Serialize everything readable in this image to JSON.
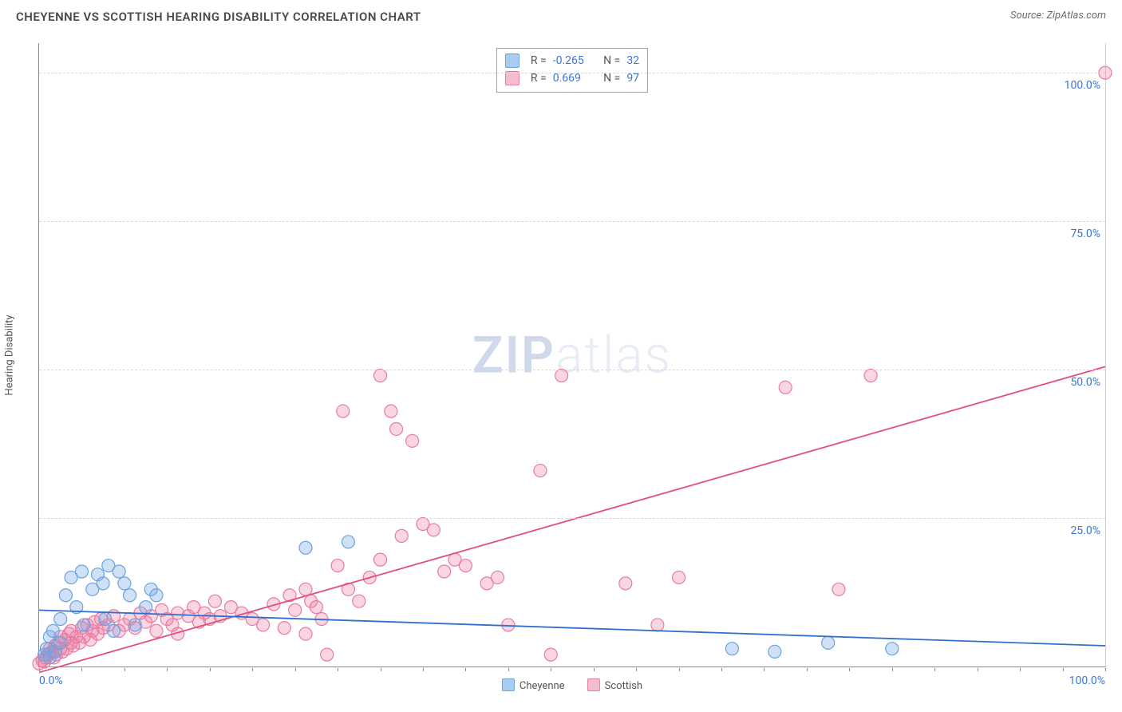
{
  "header": {
    "title": "CHEYENNE VS SCOTTISH HEARING DISABILITY CORRELATION CHART",
    "source_prefix": "Source: ",
    "source_name": "ZipAtlas.com"
  },
  "watermark": {
    "bold": "ZIP",
    "rest": "atlas"
  },
  "chart": {
    "type": "scatter",
    "y_axis_label": "Hearing Disability",
    "xlim": [
      0,
      100
    ],
    "ylim": [
      0,
      105
    ],
    "x_origin_label": "0.0%",
    "x_max_label": "100.0%",
    "y_ticks": [
      {
        "value": 25,
        "label": "25.0%"
      },
      {
        "value": 50,
        "label": "50.0%"
      },
      {
        "value": 75,
        "label": "75.0%"
      },
      {
        "value": 100,
        "label": "100.0%"
      }
    ],
    "x_minor_tick_step": 4,
    "background_color": "#ffffff",
    "grid_color": "#d9d9d9",
    "axis_color": "#8a8a8a",
    "tick_label_color": "#3a76d6",
    "series": {
      "cheyenne": {
        "label": "Cheyenne",
        "color_fill": "rgba(120,170,230,0.35)",
        "color_stroke": "#6aa3e0",
        "swatch_fill": "#a9cdf1",
        "swatch_stroke": "#6aa3e0",
        "marker_radius": 8,
        "r_value": "-0.265",
        "n_value": "32",
        "trend": {
          "x1": 0,
          "y1": 9.5,
          "x2": 100,
          "y2": 3.5,
          "color": "#2f6fd0"
        },
        "points": [
          [
            0.5,
            2
          ],
          [
            0.7,
            3
          ],
          [
            1,
            5
          ],
          [
            1,
            1.5
          ],
          [
            1.3,
            6
          ],
          [
            1.5,
            2.5
          ],
          [
            2,
            4
          ],
          [
            2,
            8
          ],
          [
            2.5,
            12
          ],
          [
            3,
            15
          ],
          [
            3.5,
            10
          ],
          [
            4,
            16
          ],
          [
            4.2,
            7
          ],
          [
            5,
            13
          ],
          [
            5.5,
            15.5
          ],
          [
            6,
            14
          ],
          [
            6.2,
            8
          ],
          [
            6.5,
            17
          ],
          [
            7,
            6
          ],
          [
            7.5,
            16
          ],
          [
            8,
            14
          ],
          [
            8.5,
            12
          ],
          [
            9,
            7
          ],
          [
            10,
            10
          ],
          [
            10.5,
            13
          ],
          [
            11,
            12
          ],
          [
            25,
            20
          ],
          [
            29,
            21
          ],
          [
            65,
            3
          ],
          [
            69,
            2.5
          ],
          [
            74,
            4
          ],
          [
            80,
            3
          ]
        ]
      },
      "scottish": {
        "label": "Scottish",
        "color_fill": "rgba(235,120,160,0.30)",
        "color_stroke": "#e87ba2",
        "swatch_fill": "#f4bcd0",
        "swatch_stroke": "#e87ba2",
        "marker_radius": 8,
        "r_value": "0.669",
        "n_value": "97",
        "trend": {
          "x1": 0,
          "y1": -1,
          "x2": 100,
          "y2": 50.5,
          "color": "#e14e7e"
        },
        "points": [
          [
            0,
            0.5
          ],
          [
            0.3,
            1
          ],
          [
            0.5,
            0.8
          ],
          [
            0.6,
            1.5
          ],
          [
            0.8,
            2
          ],
          [
            1,
            2.2
          ],
          [
            1,
            3
          ],
          [
            1.2,
            2.5
          ],
          [
            1.4,
            1.5
          ],
          [
            1.5,
            3.5
          ],
          [
            1.6,
            2
          ],
          [
            1.8,
            4
          ],
          [
            2,
            3
          ],
          [
            2,
            5
          ],
          [
            2.2,
            2.5
          ],
          [
            2.4,
            4.5
          ],
          [
            2.6,
            3
          ],
          [
            2.8,
            5.5
          ],
          [
            3,
            4
          ],
          [
            3,
            6
          ],
          [
            3.2,
            3.5
          ],
          [
            3.5,
            5
          ],
          [
            3.8,
            4
          ],
          [
            4,
            6.5
          ],
          [
            4.2,
            5
          ],
          [
            4.5,
            7
          ],
          [
            4.8,
            4.5
          ],
          [
            5,
            6
          ],
          [
            5.2,
            7.5
          ],
          [
            5.5,
            5.5
          ],
          [
            5.8,
            8
          ],
          [
            6,
            6.5
          ],
          [
            6.5,
            7
          ],
          [
            7,
            8.5
          ],
          [
            7.5,
            6
          ],
          [
            8,
            7
          ],
          [
            8.5,
            8
          ],
          [
            9,
            6.5
          ],
          [
            9.5,
            9
          ],
          [
            10,
            7.5
          ],
          [
            10.5,
            8.5
          ],
          [
            11,
            6
          ],
          [
            11.5,
            9.5
          ],
          [
            12,
            8
          ],
          [
            12.5,
            7
          ],
          [
            13,
            9
          ],
          [
            13,
            5.5
          ],
          [
            14,
            8.5
          ],
          [
            14.5,
            10
          ],
          [
            15,
            7.5
          ],
          [
            15.5,
            9
          ],
          [
            16,
            8
          ],
          [
            16.5,
            11
          ],
          [
            17,
            8.5
          ],
          [
            18,
            10
          ],
          [
            19,
            9
          ],
          [
            20,
            8
          ],
          [
            21,
            7
          ],
          [
            22,
            10.5
          ],
          [
            23,
            6.5
          ],
          [
            23.5,
            12
          ],
          [
            24,
            9.5
          ],
          [
            25,
            13
          ],
          [
            25,
            5.5
          ],
          [
            25.5,
            11
          ],
          [
            26,
            10
          ],
          [
            26.5,
            8
          ],
          [
            27,
            2
          ],
          [
            28,
            17
          ],
          [
            28.5,
            43
          ],
          [
            29,
            13
          ],
          [
            30,
            11
          ],
          [
            31,
            15
          ],
          [
            32,
            18
          ],
          [
            32,
            49
          ],
          [
            33,
            43
          ],
          [
            33.5,
            40
          ],
          [
            34,
            22
          ],
          [
            35,
            38
          ],
          [
            36,
            24
          ],
          [
            37,
            23
          ],
          [
            38,
            16
          ],
          [
            39,
            18
          ],
          [
            40,
            17
          ],
          [
            42,
            14
          ],
          [
            43,
            15
          ],
          [
            44,
            7
          ],
          [
            47,
            33
          ],
          [
            48,
            2
          ],
          [
            49,
            49
          ],
          [
            55,
            14
          ],
          [
            58,
            7
          ],
          [
            60,
            15
          ],
          [
            70,
            47
          ],
          [
            75,
            13
          ],
          [
            78,
            49
          ],
          [
            100,
            100
          ]
        ]
      }
    }
  }
}
